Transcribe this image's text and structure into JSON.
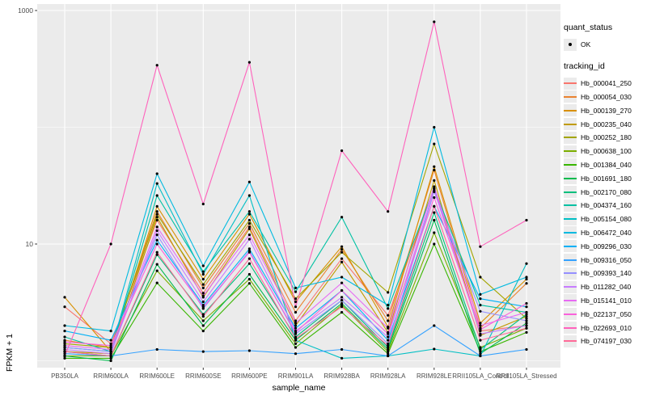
{
  "figure": {
    "background": "#FFFFFF"
  },
  "legend": {
    "quant_status_title": "quant_status",
    "ok_label": "OK",
    "tracking_id_title": "tracking_id"
  },
  "chart_data": {
    "type": "line",
    "title": "",
    "xlabel": "sample_name",
    "ylabel": "FPKM + 1",
    "y_scale": "log10",
    "ylim": [
      0.85,
      1150
    ],
    "y_breaks": [
      {
        "value": 1000,
        "label": "1000"
      },
      {
        "value": 10,
        "label": "10"
      }
    ],
    "y_minor_gridlines": [
      100,
      1
    ],
    "grid": true,
    "legend_position": "right",
    "colors": {
      "panel_bg": "#EBEBEB",
      "gridline": "#FFFFFF",
      "tick_label": "#4D4D4D",
      "tick_mark": "#333333",
      "point": "#000000",
      "legend_key_bg": "#EBEBEB"
    },
    "categories": [
      "PB350LA",
      "RRIM600LA",
      "RRIM600LE",
      "RRIM600SE",
      "RRIM600PE",
      "RRIM901LA",
      "RRIM928BA",
      "RRIM928LA",
      "RRIM928LE",
      "RRII105LA_Control",
      "RRII105LA_Stressed"
    ],
    "series": [
      {
        "name": "Hb_000041_250",
        "color": "#F8766D",
        "values": [
          2.9,
          1.4,
          16,
          3.8,
          14,
          2.2,
          7.5,
          2.45,
          30,
          1.8,
          2.0
        ]
      },
      {
        "name": "Hb_000054_030",
        "color": "#EA8331",
        "values": [
          1.5,
          1.3,
          19,
          4.2,
          15,
          2.6,
          9.0,
          2.2,
          43,
          1.9,
          4.6
        ]
      },
      {
        "name": "Hb_000139_270",
        "color": "#D89000",
        "values": [
          3.5,
          1.2,
          21,
          5.0,
          18,
          3.2,
          9.5,
          1.95,
          46,
          2.1,
          5.0
        ]
      },
      {
        "name": "Hb_000235_040",
        "color": "#C09B00",
        "values": [
          1.2,
          1.15,
          17,
          3.5,
          13.5,
          2.0,
          7.0,
          1.75,
          35,
          1.65,
          2.4
        ]
      },
      {
        "name": "Hb_000252_180",
        "color": "#A3A500",
        "values": [
          1.4,
          1.3,
          18,
          4.5,
          16,
          3.4,
          8.5,
          3.85,
          72,
          5.2,
          2.3
        ]
      },
      {
        "name": "Hb_000638_100",
        "color": "#7CAE00",
        "values": [
          1.1,
          1.1,
          5.9,
          2.2,
          5.0,
          1.4,
          3.0,
          1.2,
          12.5,
          1.3,
          1.9
        ]
      },
      {
        "name": "Hb_001384_040",
        "color": "#39B600",
        "values": [
          1.05,
          1.05,
          4.65,
          1.8,
          4.6,
          1.3,
          2.6,
          1.15,
          10,
          1.2,
          1.75
        ]
      },
      {
        "name": "Hb_001691_180",
        "color": "#00BB4E",
        "values": [
          1.1,
          1.0,
          6.7,
          2.0,
          5.5,
          1.5,
          3.1,
          1.25,
          16,
          1.15,
          2.1
        ]
      },
      {
        "name": "Hb_002170_080",
        "color": "#00BF7D",
        "values": [
          1.2,
          1.1,
          8.1,
          2.5,
          6.8,
          1.6,
          3.3,
          1.3,
          18.6,
          1.25,
          2.5
        ]
      },
      {
        "name": "Hb_004374_160",
        "color": "#00C1A3",
        "values": [
          1.6,
          1.2,
          26,
          5.8,
          19,
          3.9,
          17,
          2.8,
          30,
          3.0,
          2.6
        ]
      },
      {
        "name": "Hb_005154_080",
        "color": "#00BFC4",
        "values": [
          1.3,
          1.2,
          33,
          5.5,
          26,
          1.5,
          1.05,
          1.1,
          1.26,
          1.1,
          6.8
        ]
      },
      {
        "name": "Hb_006472_040",
        "color": "#00BAE0",
        "values": [
          2.0,
          1.8,
          40,
          6.5,
          34,
          4.2,
          5.2,
          3.0,
          100,
          3.7,
          5.2
        ]
      },
      {
        "name": "Hb_009296_030",
        "color": "#00B0F6",
        "values": [
          1.8,
          1.5,
          10.8,
          3.0,
          9.1,
          1.9,
          4.0,
          1.5,
          21,
          3.4,
          2.9
        ]
      },
      {
        "name": "Hb_009316_050",
        "color": "#35A2FF",
        "values": [
          1.15,
          1.1,
          1.25,
          1.2,
          1.22,
          1.15,
          1.25,
          1.1,
          2.0,
          1.1,
          1.25
        ]
      },
      {
        "name": "Hb_009393_140",
        "color": "#9590FF",
        "values": [
          1.3,
          1.2,
          12,
          2.8,
          8.7,
          1.7,
          3.3,
          1.4,
          28,
          2.65,
          2.2
        ]
      },
      {
        "name": "Hb_011282_040",
        "color": "#C77CFF",
        "values": [
          1.25,
          1.15,
          13,
          3.2,
          11,
          1.8,
          3.5,
          1.6,
          29,
          1.7,
          2.0
        ]
      },
      {
        "name": "Hb_015141_010",
        "color": "#E76BF3",
        "values": [
          1.35,
          1.25,
          14,
          3.6,
          12,
          2.1,
          4.65,
          1.9,
          31,
          2.0,
          2.6
        ]
      },
      {
        "name": "Hb_022137_050",
        "color": "#FA62DB",
        "values": [
          1.45,
          1.35,
          10,
          2.9,
          8.5,
          1.75,
          4.0,
          1.7,
          25,
          1.85,
          3.1
        ]
      },
      {
        "name": "Hb_022693_010",
        "color": "#FF62BC",
        "values": [
          1.1,
          10,
          340,
          22,
          360,
          2.9,
          63,
          19,
          800,
          9.5,
          16
        ]
      },
      {
        "name": "Hb_074197_030",
        "color": "#FF6A98",
        "values": [
          1.2,
          1.1,
          8.5,
          2.4,
          7.5,
          1.55,
          2.9,
          1.35,
          21,
          1.5,
          1.9
        ]
      }
    ]
  }
}
